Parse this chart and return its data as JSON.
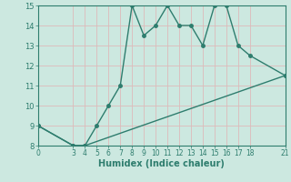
{
  "xlabel": "Humidex (Indice chaleur)",
  "line1_x": [
    0,
    3,
    4,
    5,
    6,
    7,
    8,
    9,
    10,
    11,
    12,
    13,
    14,
    15,
    16,
    17,
    18,
    21
  ],
  "line1_y": [
    9,
    8,
    8,
    9,
    10,
    11,
    15,
    13.5,
    14,
    15,
    14,
    14,
    13,
    15,
    15,
    13,
    12.5,
    11.5
  ],
  "line2_x": [
    0,
    3,
    4,
    21
  ],
  "line2_y": [
    9,
    8,
    8,
    11.5
  ],
  "line_color": "#2e7d6e",
  "bg_color": "#cce8e0",
  "grid_major_color": "#ddbaba",
  "grid_minor_color": "#e8cccc",
  "xlim": [
    0,
    21
  ],
  "ylim": [
    8,
    15
  ],
  "xticks": [
    0,
    3,
    4,
    5,
    6,
    7,
    8,
    9,
    10,
    11,
    12,
    13,
    14,
    15,
    16,
    17,
    18,
    21
  ],
  "yticks": [
    8,
    9,
    10,
    11,
    12,
    13,
    14,
    15
  ],
  "marker_size": 2.5,
  "line_width": 1.0,
  "tick_fontsize": 6,
  "xlabel_fontsize": 7
}
